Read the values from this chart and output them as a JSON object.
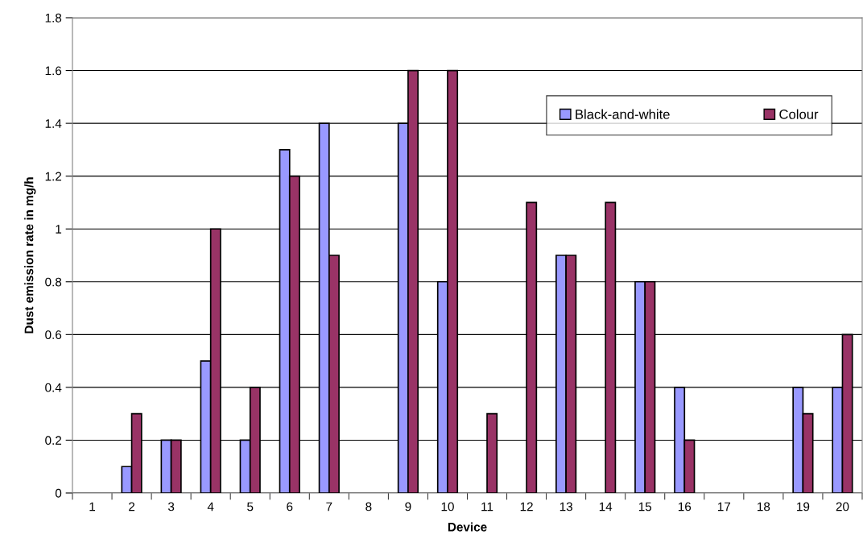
{
  "chart_data": {
    "type": "bar",
    "xlabel": "Device",
    "ylabel": "Dust emission rate in mg/h",
    "categories": [
      "1",
      "2",
      "3",
      "4",
      "5",
      "6",
      "7",
      "8",
      "9",
      "10",
      "11",
      "12",
      "13",
      "14",
      "15",
      "16",
      "17",
      "18",
      "19",
      "20"
    ],
    "series": [
      {
        "name": "Black-and-white",
        "color": "#9999ff",
        "values": [
          null,
          0.1,
          0.2,
          0.5,
          0.2,
          1.3,
          1.4,
          null,
          1.4,
          0.8,
          null,
          null,
          0.9,
          null,
          0.8,
          0.4,
          null,
          null,
          0.4,
          0.4
        ]
      },
      {
        "name": "Colour",
        "color": "#993366",
        "values": [
          null,
          0.3,
          0.2,
          1.0,
          0.4,
          1.2,
          0.9,
          null,
          1.6,
          1.6,
          0.3,
          1.1,
          0.9,
          1.1,
          0.8,
          0.2,
          null,
          null,
          0.3,
          0.6
        ]
      }
    ],
    "ylim": [
      0,
      1.8
    ],
    "yticks": [
      0,
      0.2,
      0.4,
      0.6,
      0.8,
      1,
      1.2,
      1.4,
      1.6,
      1.8
    ],
    "grid": "y",
    "legend": "top right"
  }
}
